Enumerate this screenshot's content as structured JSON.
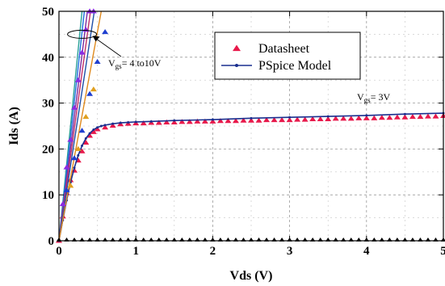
{
  "chart_data": {
    "type": "line",
    "xlabel": "Vds (V)",
    "ylabel": "Ids (A)",
    "xlim": [
      0,
      5
    ],
    "ylim": [
      0,
      50
    ],
    "xticks": [
      "0",
      "1",
      "2",
      "3",
      "4",
      "5"
    ],
    "yticks": [
      "0",
      "10",
      "20",
      "30",
      "40",
      "50"
    ],
    "grid": true,
    "grid_style": "dashed",
    "legend_position": "top-right",
    "legend": [
      {
        "label": "Datasheet",
        "marker": "triangle",
        "color": "#e8194b"
      },
      {
        "label": "PSpice Model",
        "marker": "line-with-dots",
        "color": "#1a2f8f"
      }
    ],
    "annotations": [
      {
        "text_main": "V",
        "text_sub": "gs",
        "text_rest": "= 4 to10V"
      },
      {
        "text_main": "V",
        "text_sub": "gs",
        "text_rest": "= 3V"
      }
    ],
    "series": [
      {
        "name": "Datasheet",
        "kind": "markers",
        "marker": "triangle",
        "color": "#e8194b",
        "x": [
          0.0,
          0.05,
          0.1,
          0.15,
          0.2,
          0.25,
          0.3,
          0.35,
          0.4,
          0.45,
          0.5,
          0.6,
          0.7,
          0.8,
          0.9,
          1.0,
          1.1,
          1.2,
          1.3,
          1.4,
          1.5,
          1.6,
          1.7,
          1.8,
          1.9,
          2.0,
          2.1,
          2.2,
          2.3,
          2.4,
          2.5,
          2.6,
          2.7,
          2.8,
          2.9,
          3.0,
          3.1,
          3.2,
          3.3,
          3.4,
          3.5,
          3.6,
          3.7,
          3.8,
          3.9,
          4.0,
          4.1,
          4.2,
          4.3,
          4.4,
          4.5,
          4.6,
          4.7,
          4.8,
          4.9,
          5.0
        ],
        "y": [
          0.0,
          5.3,
          10.4,
          13.2,
          15.3,
          17.5,
          19.5,
          21.4,
          22.9,
          23.7,
          24.3,
          24.7,
          25.1,
          25.4,
          25.5,
          25.6,
          25.6,
          25.7,
          25.7,
          25.8,
          25.8,
          25.9,
          25.9,
          26.0,
          26.0,
          26.0,
          26.1,
          26.1,
          26.1,
          26.2,
          26.2,
          26.2,
          26.3,
          26.3,
          26.3,
          26.3,
          26.4,
          26.4,
          26.5,
          26.5,
          26.5,
          26.6,
          26.6,
          26.6,
          26.7,
          26.7,
          26.7,
          26.8,
          26.8,
          26.9,
          26.9,
          27.0,
          27.0,
          27.1,
          27.1,
          27.2
        ]
      },
      {
        "name": "PSpice Model",
        "kind": "line",
        "color": "#1a2f8f",
        "x": [
          0.0,
          0.05,
          0.1,
          0.15,
          0.2,
          0.25,
          0.3,
          0.35,
          0.4,
          0.45,
          0.5,
          0.55,
          0.6,
          0.7,
          0.8,
          0.9,
          1.0,
          1.2,
          1.5,
          2.0,
          2.5,
          3.0,
          3.5,
          4.0,
          4.5,
          5.0
        ],
        "y": [
          0.0,
          4.5,
          8.8,
          12.7,
          15.9,
          18.6,
          20.7,
          22.3,
          23.4,
          24.2,
          24.7,
          25.0,
          25.2,
          25.5,
          25.7,
          25.8,
          25.9,
          26.0,
          26.2,
          26.4,
          26.7,
          26.9,
          27.1,
          27.3,
          27.6,
          27.8
        ]
      },
      {
        "name": "",
        "kind": "line",
        "color": "#2aa198",
        "x": [
          0.0,
          0.3
        ],
        "y": [
          0.0,
          50
        ]
      },
      {
        "name": "",
        "kind": "line",
        "color": "#1f6fe0",
        "x": [
          0.0,
          0.33
        ],
        "y": [
          0.0,
          50
        ]
      },
      {
        "name": "",
        "kind": "line",
        "color": "#7a2ba0",
        "x": [
          0.0,
          0.37
        ],
        "y": [
          0.0,
          50
        ]
      },
      {
        "name": "",
        "kind": "line",
        "color": "#c0306a",
        "x": [
          0.0,
          0.41
        ],
        "y": [
          0.0,
          50
        ]
      },
      {
        "name": "",
        "kind": "line",
        "color": "#1e4fa8",
        "x": [
          0.0,
          0.46
        ],
        "y": [
          0.0,
          50
        ]
      },
      {
        "name": "",
        "kind": "line",
        "color": "#e08a1e",
        "x": [
          0.0,
          0.55
        ],
        "y": [
          0.0,
          50
        ]
      },
      {
        "name": "",
        "kind": "markers",
        "marker": "triangle",
        "color": "#8a2be2",
        "x": [
          0.05,
          0.1,
          0.15,
          0.2,
          0.25,
          0.3,
          0.35,
          0.4,
          0.45
        ],
        "y": [
          8,
          16,
          22,
          29,
          35,
          41,
          46,
          50,
          50
        ]
      },
      {
        "name": "",
        "kind": "markers",
        "marker": "triangle",
        "color": "#1f3fd0",
        "x": [
          0.1,
          0.2,
          0.3,
          0.4,
          0.5,
          0.6
        ],
        "y": [
          11,
          18,
          24,
          32,
          39,
          45.5
        ]
      },
      {
        "name": "",
        "kind": "markers",
        "marker": "triangle",
        "color": "#e0a020",
        "x": [
          0.15,
          0.25,
          0.35,
          0.45
        ],
        "y": [
          12,
          20,
          27,
          33
        ]
      },
      {
        "name": "",
        "kind": "markers",
        "marker": "triangle",
        "color": "#000000",
        "x": [
          0.0,
          0.1,
          0.2,
          0.3,
          0.4,
          0.5,
          0.6,
          0.7,
          0.8,
          0.9,
          1.0,
          1.1,
          1.2,
          1.3,
          1.4,
          1.5,
          1.6,
          1.7,
          1.8,
          1.9,
          2.0,
          2.1,
          2.2,
          2.3,
          2.4,
          2.5,
          2.6,
          2.7,
          2.8,
          2.9,
          3.0,
          3.1,
          3.2,
          3.3,
          3.4,
          3.5,
          3.6,
          3.7,
          3.8,
          3.9,
          4.0,
          4.1,
          4.2,
          4.3,
          4.4,
          4.5,
          4.6,
          4.7,
          4.8,
          4.9,
          5.0
        ],
        "y": [
          0.2,
          0.2,
          0.2,
          0.2,
          0.2,
          0.2,
          0.2,
          0.2,
          0.2,
          0.2,
          0.2,
          0.2,
          0.2,
          0.2,
          0.2,
          0.2,
          0.2,
          0.2,
          0.2,
          0.2,
          0.2,
          0.2,
          0.2,
          0.2,
          0.2,
          0.2,
          0.2,
          0.2,
          0.2,
          0.2,
          0.2,
          0.2,
          0.2,
          0.2,
          0.2,
          0.2,
          0.2,
          0.2,
          0.2,
          0.2,
          0.2,
          0.2,
          0.2,
          0.2,
          0.2,
          0.2,
          0.2,
          0.2,
          0.2,
          0.2,
          0.2
        ]
      }
    ]
  }
}
